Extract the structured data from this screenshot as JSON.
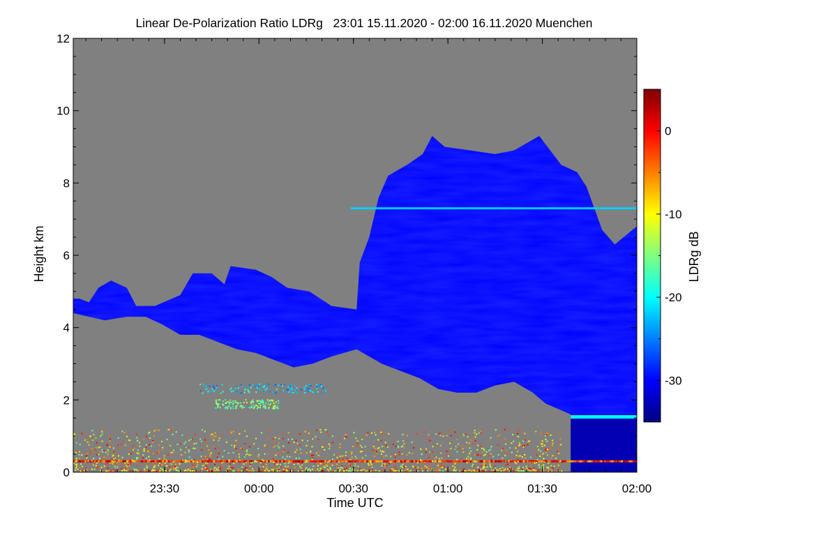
{
  "chart_data": {
    "type": "heatmap",
    "title": "Linear De-Polarization Ratio LDRg   23:01 15.11.2020 - 02:00 16.11.2020 Muenchen",
    "xlabel": "Time UTC",
    "ylabel": "Height km",
    "colorbar_label": "LDRg dB",
    "x_ticks": [
      "23:30",
      "00:00",
      "00:30",
      "01:00",
      "01:30",
      "02:00"
    ],
    "x_tick_minutes": [
      29,
      59,
      89,
      119,
      149,
      179
    ],
    "xlim_minutes": [
      0,
      179
    ],
    "y_ticks": [
      "0",
      "2",
      "4",
      "6",
      "8",
      "10",
      "12"
    ],
    "ylim": [
      0,
      12
    ],
    "colorbar_ticks": [
      "0",
      "-10",
      "-20",
      "-30"
    ],
    "colorbar_tick_values": [
      0,
      -10,
      -20,
      -30
    ],
    "clim": [
      -35,
      5
    ],
    "background_color": "#808080",
    "colormap": [
      "#00007f",
      "#0000ff",
      "#007fff",
      "#00ffff",
      "#7fff7f",
      "#ffff00",
      "#ff7f00",
      "#ff0000",
      "#7f0000"
    ],
    "cloud_top_km": [
      [
        0,
        4.8
      ],
      [
        2,
        4.8
      ],
      [
        5,
        4.7
      ],
      [
        8,
        5.1
      ],
      [
        12,
        5.3
      ],
      [
        17,
        5.1
      ],
      [
        20,
        4.6
      ],
      [
        26,
        4.6
      ],
      [
        34,
        4.9
      ],
      [
        38,
        5.5
      ],
      [
        44,
        5.5
      ],
      [
        48,
        5.2
      ],
      [
        50,
        5.7
      ],
      [
        58,
        5.6
      ],
      [
        63,
        5.4
      ],
      [
        68,
        5.1
      ],
      [
        75,
        5.0
      ],
      [
        82,
        4.6
      ],
      [
        90,
        4.5
      ],
      [
        91,
        5.8
      ],
      [
        94,
        6.5
      ],
      [
        97,
        7.6
      ],
      [
        100,
        8.2
      ],
      [
        106,
        8.5
      ],
      [
        111,
        8.8
      ],
      [
        114,
        9.3
      ],
      [
        118,
        9.0
      ],
      [
        126,
        8.9
      ],
      [
        134,
        8.8
      ],
      [
        140,
        8.9
      ],
      [
        148,
        9.3
      ],
      [
        155,
        8.5
      ],
      [
        160,
        8.3
      ],
      [
        163,
        7.9
      ],
      [
        168,
        6.7
      ],
      [
        172,
        6.3
      ],
      [
        179,
        6.8
      ]
    ],
    "cloud_base_km": [
      [
        0,
        4.4
      ],
      [
        5,
        4.3
      ],
      [
        10,
        4.2
      ],
      [
        17,
        4.3
      ],
      [
        23,
        4.3
      ],
      [
        28,
        4.1
      ],
      [
        34,
        3.8
      ],
      [
        40,
        3.8
      ],
      [
        46,
        3.6
      ],
      [
        52,
        3.4
      ],
      [
        58,
        3.3
      ],
      [
        64,
        3.1
      ],
      [
        70,
        2.9
      ],
      [
        76,
        3.0
      ],
      [
        82,
        3.2
      ],
      [
        90,
        3.4
      ],
      [
        98,
        3.0
      ],
      [
        104,
        2.8
      ],
      [
        110,
        2.6
      ],
      [
        116,
        2.3
      ],
      [
        122,
        2.2
      ],
      [
        128,
        2.2
      ],
      [
        134,
        2.4
      ],
      [
        140,
        2.5
      ],
      [
        146,
        2.2
      ],
      [
        150,
        1.9
      ],
      [
        158,
        1.6
      ],
      [
        164,
        1.5
      ],
      [
        170,
        1.5
      ],
      [
        179,
        1.6
      ]
    ],
    "lower_blue_region": {
      "time_min": [
        158,
        179
      ],
      "height_km": [
        0.0,
        1.6
      ],
      "value_db": -33
    },
    "features": [
      {
        "kind": "thin_layer",
        "time_min": [
          88,
          179
        ],
        "height_km": 7.3,
        "value_db": -22
      },
      {
        "kind": "bright_band",
        "time_min": [
          158,
          179
        ],
        "height_km": 1.55,
        "value_db": -20
      },
      {
        "kind": "surface_layer",
        "time_min": [
          0,
          179
        ],
        "height_km": 0.3,
        "value_db": -2
      },
      {
        "kind": "aerosol_speckle",
        "time_min": [
          0,
          155
        ],
        "height_km": [
          0.05,
          1.2
        ],
        "value_db": -8
      },
      {
        "kind": "scattered_layer",
        "time_min": [
          40,
          80
        ],
        "height_km": 2.33,
        "value_db": -22
      },
      {
        "kind": "scattered_layer",
        "time_min": [
          45,
          65
        ],
        "height_km": 1.9,
        "value_db": -15
      }
    ]
  }
}
